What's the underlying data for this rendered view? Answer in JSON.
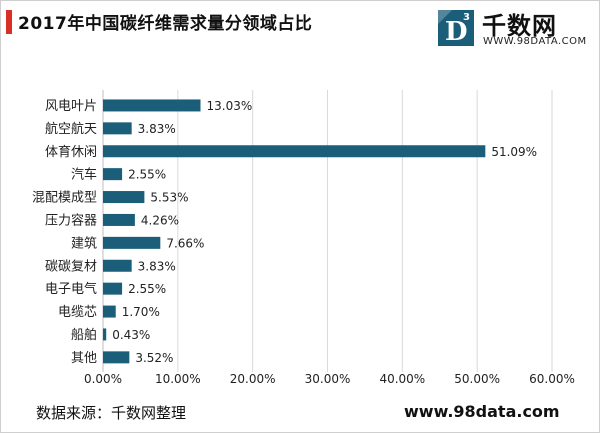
{
  "header": {
    "title": "2017年中国碳纤维需求量分领域占比"
  },
  "logo": {
    "letter": "D",
    "superscript": "3",
    "name": "千数网",
    "url": "WWW.98DATA.COM"
  },
  "footer": {
    "source": "数据来源：千数网整理",
    "site": "www.98data.com"
  },
  "colors": {
    "bar": "#1b5e7a",
    "title_accent": "#d93025",
    "grid": "#d9d9d9"
  },
  "chart_data": {
    "type": "bar",
    "orientation": "horizontal",
    "categories": [
      "风电叶片",
      "航空航天",
      "体育休闲",
      "汽车",
      "混配模成型",
      "压力容器",
      "建筑",
      "碳碳复材",
      "电子电气",
      "电缆芯",
      "船舶",
      "其他"
    ],
    "values": [
      13.03,
      3.83,
      51.09,
      2.55,
      5.53,
      4.26,
      7.66,
      3.83,
      2.55,
      1.7,
      0.43,
      3.52
    ],
    "value_labels": [
      "13.03%",
      "3.83%",
      "51.09%",
      "2.55%",
      "5.53%",
      "4.26%",
      "7.66%",
      "3.83%",
      "2.55%",
      "1.70%",
      "0.43%",
      "3.52%"
    ],
    "xlim": [
      0,
      60
    ],
    "xticks": [
      0,
      10,
      20,
      30,
      40,
      50,
      60
    ],
    "xtick_labels": [
      "0.00%",
      "10.00%",
      "20.00%",
      "30.00%",
      "40.00%",
      "50.00%",
      "60.00%"
    ],
    "grid": true,
    "legend": "none"
  }
}
